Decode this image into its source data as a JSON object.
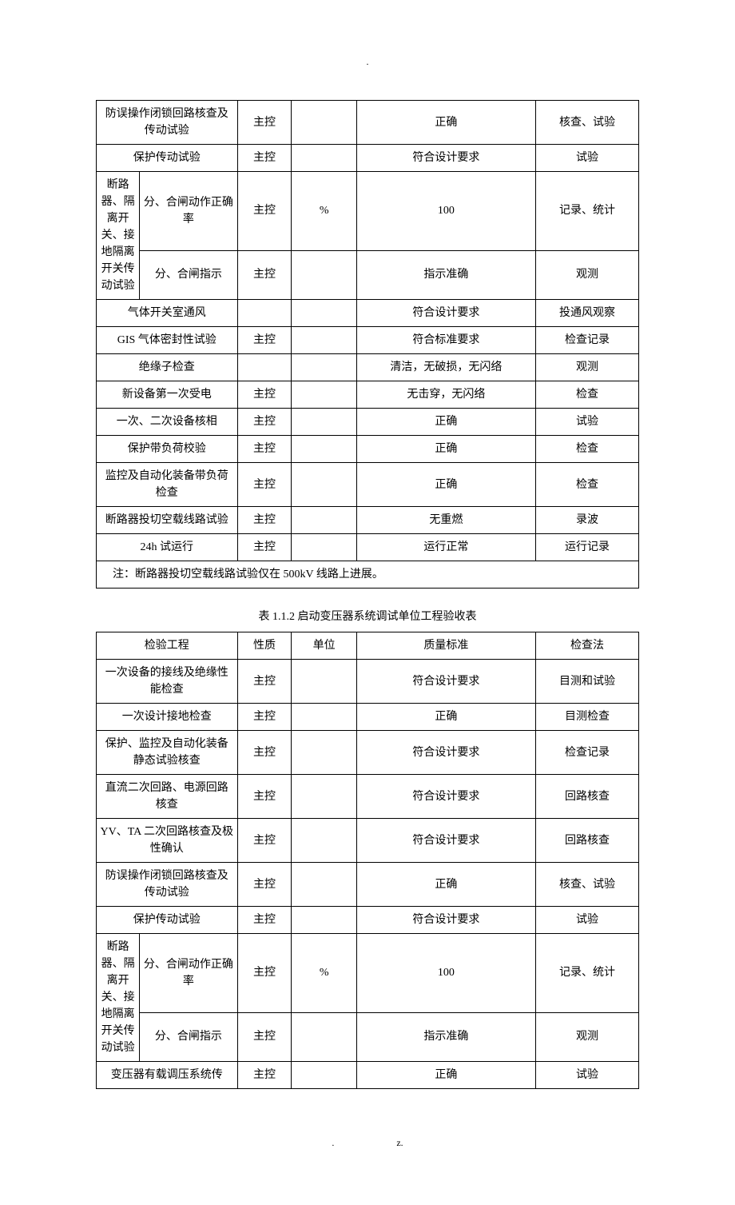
{
  "topMarker": ".",
  "bottomLeft": ".",
  "bottomRight": "z.",
  "table1": {
    "rows": [
      {
        "name": "防误操作闭锁回路核查及传动试验",
        "nature": "主控",
        "unit": "",
        "standard": "正确",
        "method": "核查、试验"
      },
      {
        "name": "保护传动试验",
        "nature": "主控",
        "unit": "",
        "standard": "符合设计要求",
        "method": "试验"
      }
    ],
    "groupLabel": "断路器、隔离开关、接地隔离开关传动试验",
    "groupRows": [
      {
        "name": "分、合闸动作正确率",
        "nature": "主控",
        "unit": "%",
        "standard": "100",
        "method": "记录、统计"
      },
      {
        "name": "分、合闸指示",
        "nature": "主控",
        "unit": "",
        "standard": "指示准确",
        "method": "观测"
      }
    ],
    "rows2": [
      {
        "name": "气体开关室通风",
        "nature": "",
        "unit": "",
        "standard": "符合设计要求",
        "method": "投通风观察"
      },
      {
        "name": "GIS 气体密封性试验",
        "nature": "主控",
        "unit": "",
        "standard": "符合标准要求",
        "method": "检查记录"
      },
      {
        "name": "绝缘子检查",
        "nature": "",
        "unit": "",
        "standard": "清洁，无破损，无闪络",
        "method": "观测"
      },
      {
        "name": "新设备第一次受电",
        "nature": "主控",
        "unit": "",
        "standard": "无击穿，无闪络",
        "method": "检查"
      },
      {
        "name": "一次、二次设备核相",
        "nature": "主控",
        "unit": "",
        "standard": "正确",
        "method": "试验"
      },
      {
        "name": "保护带负荷校验",
        "nature": "主控",
        "unit": "",
        "standard": "正确",
        "method": "检查"
      },
      {
        "name": "监控及自动化装备带负荷检查",
        "nature": "主控",
        "unit": "",
        "standard": "正确",
        "method": "检查"
      },
      {
        "name": "断路器投切空载线路试验",
        "nature": "主控",
        "unit": "",
        "standard": "无重燃",
        "method": "录波"
      },
      {
        "name": "24h 试运行",
        "nature": "主控",
        "unit": "",
        "standard": "运行正常",
        "method": "运行记录"
      }
    ],
    "footnote": "注：断路器投切空载线路试验仅在 500kV 线路上进展。"
  },
  "captionTable2": "表 1.1.2  启动变压器系统调试单位工程验收表",
  "table2": {
    "headers": {
      "item": "检验工程",
      "nature": "性质",
      "unit": "单位",
      "standard": "质量标准",
      "method": "检查法"
    },
    "rows": [
      {
        "name": "一次设备的接线及绝缘性能检查",
        "nature": "主控",
        "unit": "",
        "standard": "符合设计要求",
        "method": "目测和试验"
      },
      {
        "name": "一次设计接地检查",
        "nature": "主控",
        "unit": "",
        "standard": "正确",
        "method": "目测检查"
      },
      {
        "name": "保护、监控及自动化装备静态试验核查",
        "nature": "主控",
        "unit": "",
        "standard": "符合设计要求",
        "method": "检查记录"
      },
      {
        "name": "直流二次回路、电源回路核查",
        "nature": "主控",
        "unit": "",
        "standard": "符合设计要求",
        "method": "回路核查"
      },
      {
        "name": "YV、TA 二次回路核查及极性确认",
        "nature": "主控",
        "unit": "",
        "standard": "符合设计要求",
        "method": "回路核查"
      },
      {
        "name": "防误操作闭锁回路核查及传动试验",
        "nature": "主控",
        "unit": "",
        "standard": "正确",
        "method": "核查、试验"
      },
      {
        "name": "保护传动试验",
        "nature": "主控",
        "unit": "",
        "standard": "符合设计要求",
        "method": "试验"
      }
    ],
    "groupLabel": "断路器、隔离开关、接地隔离开关传动试验",
    "groupRows": [
      {
        "name": "分、合闸动作正确率",
        "nature": "主控",
        "unit": "%",
        "standard": "100",
        "method": "记录、统计"
      },
      {
        "name": "分、合闸指示",
        "nature": "主控",
        "unit": "",
        "standard": "指示准确",
        "method": "观测"
      }
    ],
    "rows2": [
      {
        "name": "变压器有载调压系统传",
        "nature": "主控",
        "unit": "",
        "standard": "正确",
        "method": "试验"
      }
    ]
  },
  "style": {
    "fontFamily": "SimSun",
    "fontSize": 14,
    "borderColor": "#000000",
    "textColor": "#000000",
    "background": "#ffffff",
    "pageWidth": 920,
    "pageHeight": 1302,
    "tableWidth": 680
  }
}
